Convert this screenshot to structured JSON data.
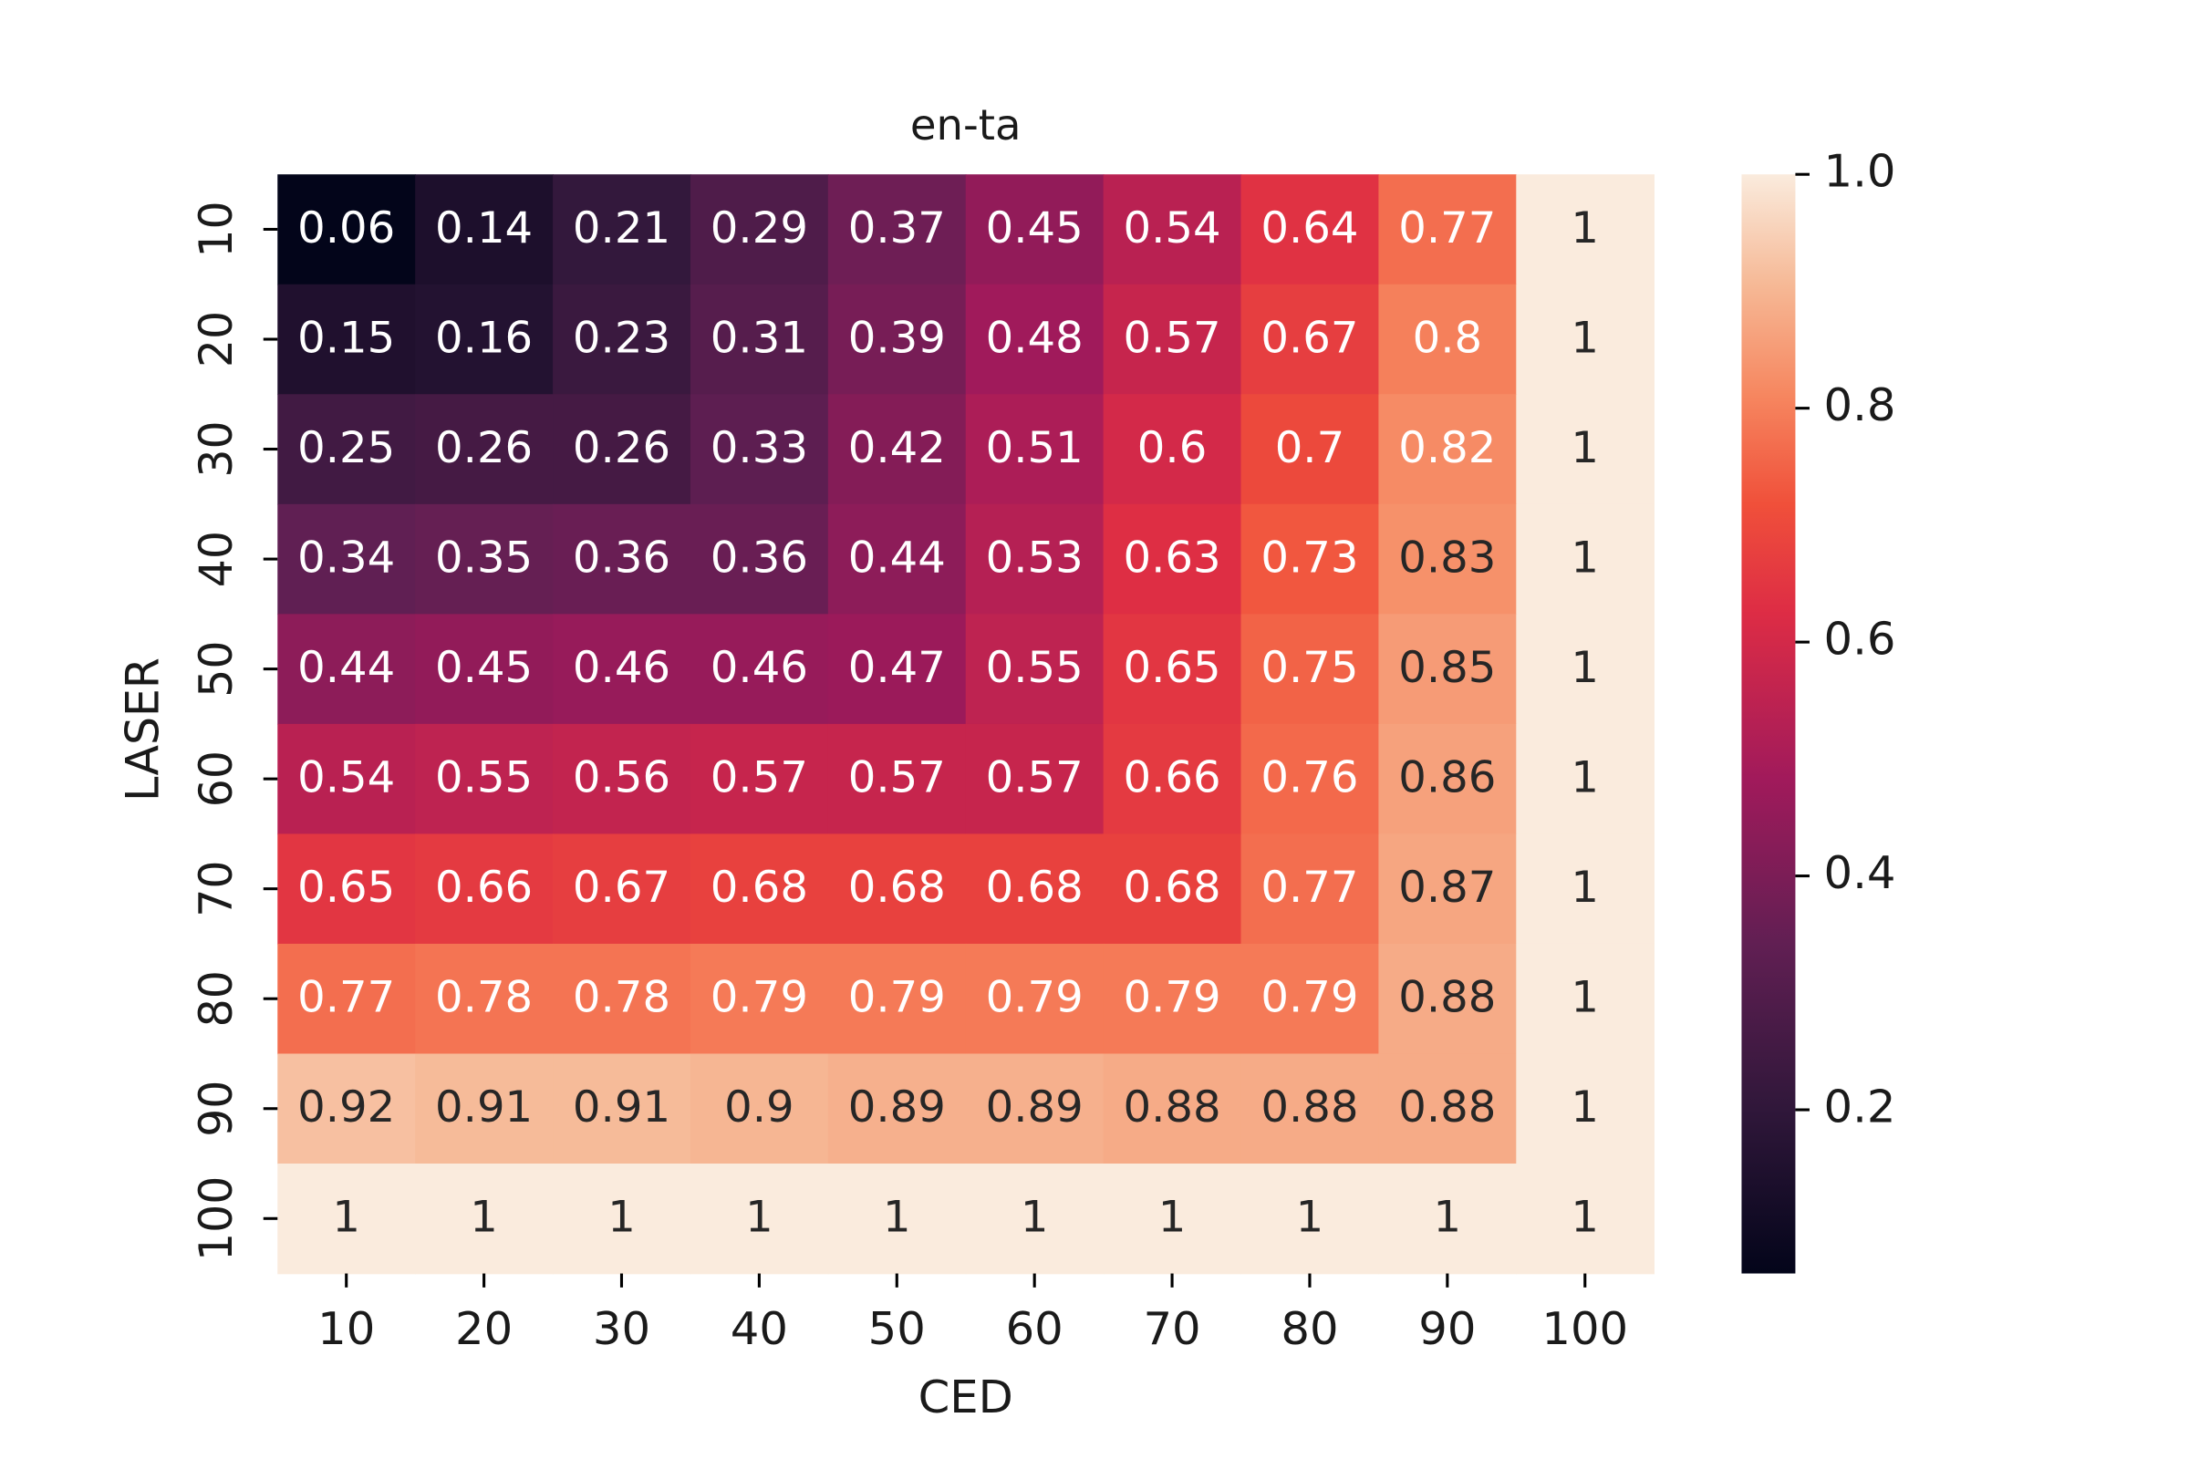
{
  "chart_data": {
    "type": "heatmap",
    "title": "en-ta",
    "x_label": "CED",
    "y_label": "LASER",
    "x_categories": [
      10,
      20,
      30,
      40,
      50,
      60,
      70,
      80,
      90,
      100
    ],
    "y_categories": [
      10,
      20,
      30,
      40,
      50,
      60,
      70,
      80,
      90,
      100
    ],
    "values": [
      [
        0.06,
        0.14,
        0.21,
        0.29,
        0.37,
        0.45,
        0.54,
        0.64,
        0.77,
        1
      ],
      [
        0.15,
        0.16,
        0.23,
        0.31,
        0.39,
        0.48,
        0.57,
        0.67,
        0.8,
        1
      ],
      [
        0.25,
        0.26,
        0.26,
        0.33,
        0.42,
        0.51,
        0.6,
        0.7,
        0.82,
        1
      ],
      [
        0.34,
        0.35,
        0.36,
        0.36,
        0.44,
        0.53,
        0.63,
        0.73,
        0.83,
        1
      ],
      [
        0.44,
        0.45,
        0.46,
        0.46,
        0.47,
        0.55,
        0.65,
        0.75,
        0.85,
        1
      ],
      [
        0.54,
        0.55,
        0.56,
        0.57,
        0.57,
        0.57,
        0.66,
        0.76,
        0.86,
        1
      ],
      [
        0.65,
        0.66,
        0.67,
        0.68,
        0.68,
        0.68,
        0.68,
        0.77,
        0.87,
        1
      ],
      [
        0.77,
        0.78,
        0.78,
        0.79,
        0.79,
        0.79,
        0.79,
        0.79,
        0.88,
        1
      ],
      [
        0.92,
        0.91,
        0.91,
        0.9,
        0.89,
        0.89,
        0.88,
        0.88,
        0.88,
        1
      ],
      [
        1,
        1,
        1,
        1,
        1,
        1,
        1,
        1,
        1,
        1
      ]
    ],
    "colormap": "rocket",
    "clim": [
      0.06,
      1.0
    ],
    "colorbar_ticks": [
      0.2,
      0.4,
      0.6,
      0.8,
      {
        "value": 1.0,
        "label": "1.0"
      }
    ]
  }
}
